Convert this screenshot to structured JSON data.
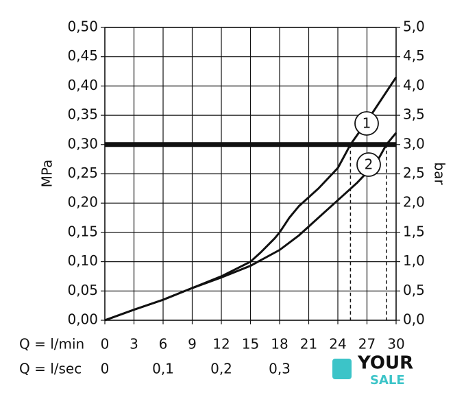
{
  "chart_data": {
    "type": "line",
    "ylabel": "MPa",
    "y2label": "bar",
    "xlabel": "Q = l/min",
    "x2label": "Q = l/sec",
    "series": [
      {
        "name": "1",
        "color": "#111111",
        "x": [
          0,
          3,
          6,
          9,
          12,
          15,
          16,
          17.5,
          18,
          19,
          20,
          22,
          24,
          25.3,
          27,
          30
        ],
        "values": [
          0,
          0.018,
          0.035,
          0.055,
          0.075,
          0.1,
          0.115,
          0.14,
          0.15,
          0.175,
          0.195,
          0.225,
          0.26,
          0.3,
          0.34,
          0.415
        ]
      },
      {
        "name": "2",
        "color": "#111111",
        "x": [
          0,
          3,
          6,
          9,
          12,
          15,
          18,
          20,
          22,
          24,
          26,
          28,
          29,
          30
        ],
        "values": [
          0,
          0.018,
          0.035,
          0.055,
          0.073,
          0.093,
          0.12,
          0.145,
          0.175,
          0.205,
          0.235,
          0.27,
          0.3,
          0.32
        ]
      }
    ],
    "hline": 0.3,
    "reference_lines": [
      {
        "x": 25.3,
        "y": 0.3
      },
      {
        "x": 29,
        "y": 0.3
      }
    ],
    "xlim": [
      0,
      30
    ],
    "xticks": [
      0,
      3,
      6,
      9,
      12,
      15,
      18,
      21,
      24,
      27,
      30
    ],
    "x2lim": [
      0,
      0.5
    ],
    "x2ticks": [
      0,
      {
        "value": 0.1,
        "label": "0,1"
      },
      {
        "value": 0.2,
        "label": "0,2"
      },
      {
        "value": 0.3,
        "label": "0,3"
      }
    ],
    "ylim": [
      0,
      0.5
    ],
    "yticks": [
      {
        "value": 0,
        "label": "0,00"
      },
      {
        "value": 0.05,
        "label": "0,05"
      },
      {
        "value": 0.1,
        "label": "0,10"
      },
      {
        "value": 0.15,
        "label": "0,15"
      },
      {
        "value": 0.2,
        "label": "0,20"
      },
      {
        "value": 0.25,
        "label": "0,25"
      },
      {
        "value": 0.3,
        "label": "0,30"
      },
      {
        "value": 0.35,
        "label": "0,35"
      },
      {
        "value": 0.4,
        "label": "0,40"
      },
      {
        "value": 0.45,
        "label": "0,45"
      },
      {
        "value": 0.5,
        "label": "0,50"
      }
    ],
    "y2lim": [
      0,
      5
    ],
    "y2ticks": [
      {
        "value": 0,
        "label": "0,0"
      },
      {
        "value": 0.5,
        "label": "0,5"
      },
      {
        "value": 1,
        "label": "1,0"
      },
      {
        "value": 1.5,
        "label": "1,5"
      },
      {
        "value": 2,
        "label": "2,0"
      },
      {
        "value": 2.5,
        "label": "2,5"
      },
      {
        "value": 3,
        "label": "3,0"
      },
      {
        "value": 3.5,
        "label": "3,5"
      },
      {
        "value": 4,
        "label": "4,0"
      },
      {
        "value": 4.5,
        "label": "4,5"
      },
      {
        "value": 5,
        "label": "5,0"
      }
    ],
    "grid": true,
    "watermark": {
      "top": "YOUR",
      "bottom": "SALE"
    }
  }
}
